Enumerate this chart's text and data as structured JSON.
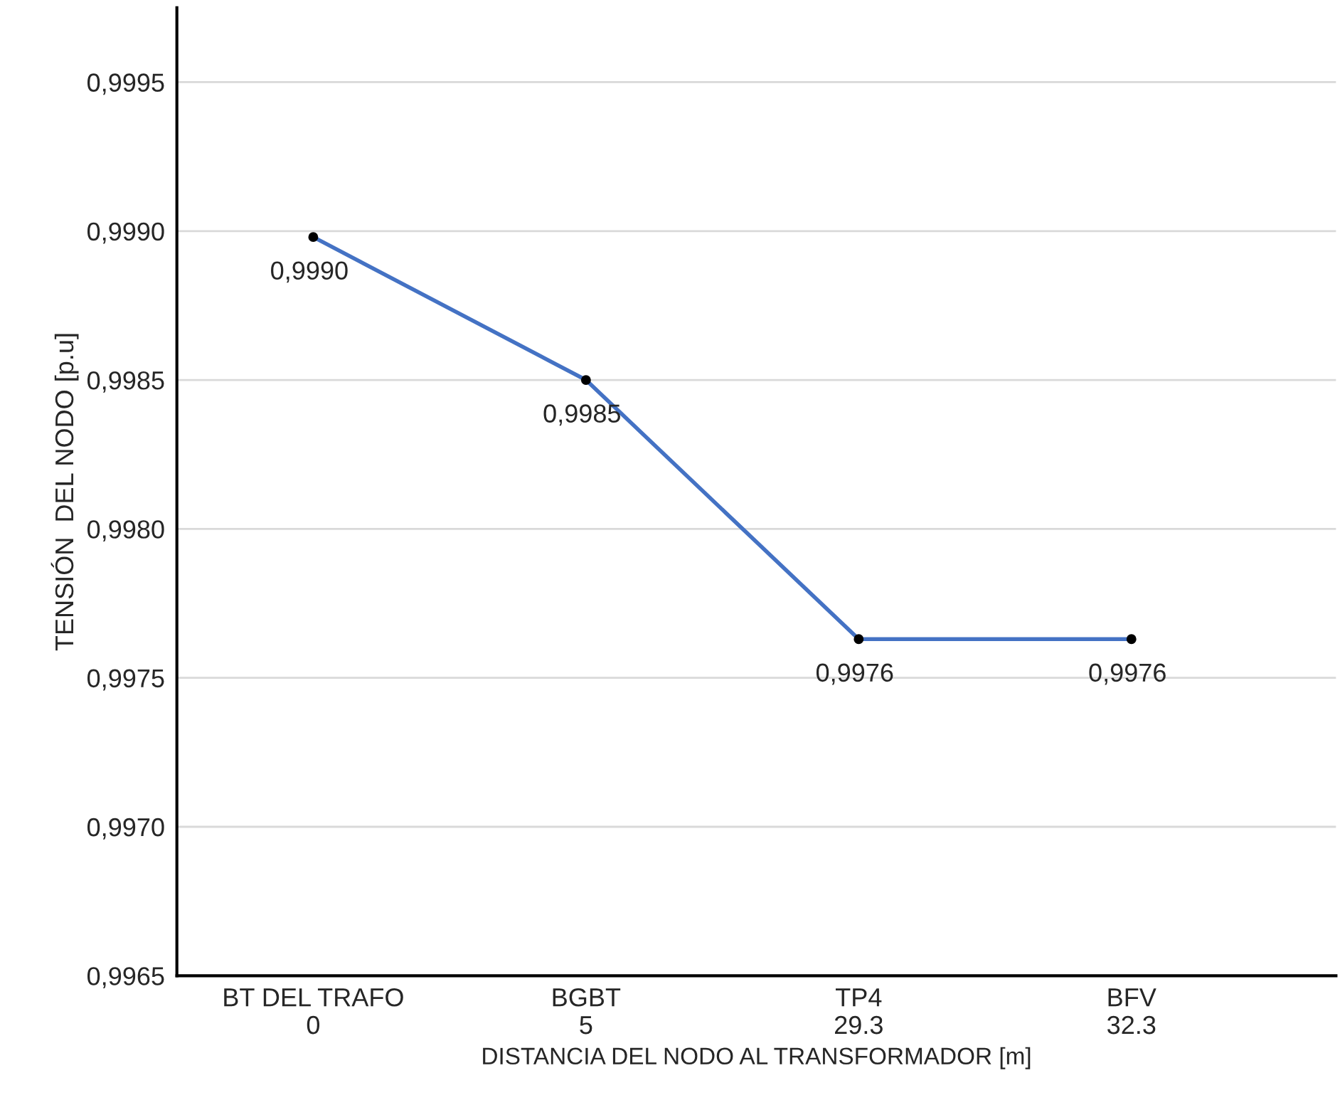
{
  "chart_data": {
    "type": "line",
    "xlabel": "DISTANCIA DEL NODO AL TRANSFORMADOR [m]",
    "ylabel": "TENSIÓN  DEL NODO [p.u]",
    "categories": [
      "BT DEL TRAFO\n0",
      "BGBT\n5",
      "TP4\n29.3",
      "BFV\n32.3"
    ],
    "series": [
      {
        "color": "#4472c4",
        "values": [
          0.99898,
          0.9985,
          0.99763,
          0.99763
        ],
        "value_labels": [
          "0,9990",
          "0,9985",
          "0,9976",
          "0,9976"
        ]
      }
    ],
    "ylim": [
      0.9965,
      0.99975
    ],
    "yticks": [
      {
        "value": 0.9965,
        "label": "0,9965"
      },
      {
        "value": 0.997,
        "label": "0,9970"
      },
      {
        "value": 0.9975,
        "label": "0,9975"
      },
      {
        "value": 0.998,
        "label": "0,9980"
      },
      {
        "value": 0.9985,
        "label": "0,9985"
      },
      {
        "value": 0.999,
        "label": "0,9990"
      },
      {
        "value": 0.9995,
        "label": "0,9995"
      }
    ],
    "grid": "y",
    "marker": "circle",
    "line_style": "solid"
  }
}
